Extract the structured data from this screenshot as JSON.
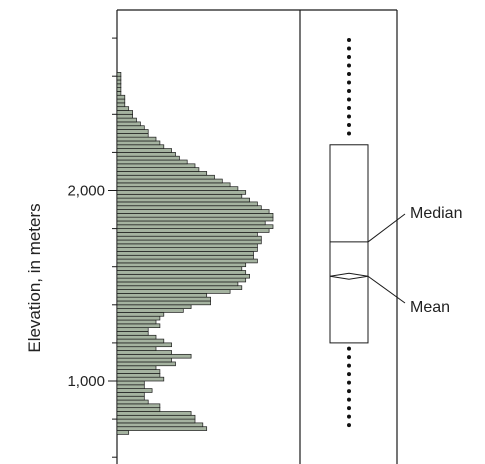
{
  "colors": {
    "bar_fill": "#a5b3a0",
    "bar_stroke": "#1a1a1a",
    "axis": "#1a1a1a",
    "box_stroke": "#1a1a1a",
    "whisker_dots": "#111111"
  },
  "chart_data": [
    {
      "type": "histogram",
      "orientation": "horizontal",
      "ylabel": "Elevation, in meters",
      "ylim": [
        600,
        2960
      ],
      "yticks": [
        {
          "value": 1000,
          "label": "1,000"
        },
        {
          "value": 2000,
          "label": "2,000"
        }
      ],
      "minor_ytick_step": 200,
      "bin_width_m": 20,
      "bin_start_m": 720,
      "counts": [
        3,
        23,
        22,
        20,
        20,
        19,
        11,
        11,
        8,
        7,
        7,
        9,
        7,
        7,
        12,
        11,
        11,
        10,
        15,
        14,
        19,
        14,
        10,
        14,
        12,
        10,
        8,
        8,
        11,
        10,
        11,
        12,
        17,
        19,
        24,
        24,
        23,
        29,
        32,
        31,
        33,
        34,
        33,
        32,
        33,
        36,
        35,
        35,
        36,
        36,
        37,
        37,
        36,
        39,
        40,
        38,
        40,
        40,
        39,
        37,
        36,
        34,
        32,
        33,
        31,
        29,
        27,
        25,
        23,
        21,
        20,
        18,
        16,
        15,
        14,
        12,
        11,
        10,
        8,
        8,
        7,
        6,
        5,
        4,
        4,
        3,
        2,
        2,
        2,
        1,
        1,
        1,
        1,
        1,
        1
      ]
    },
    {
      "type": "boxplot",
      "orientation": "vertical",
      "stats": {
        "min": 750,
        "q1": 1200,
        "median": 1730,
        "mean": 1550,
        "q3": 2240,
        "max": 2790
      },
      "annotations": [
        {
          "target": "median",
          "label": "Median"
        },
        {
          "target": "mean",
          "label": "Mean"
        }
      ]
    }
  ]
}
